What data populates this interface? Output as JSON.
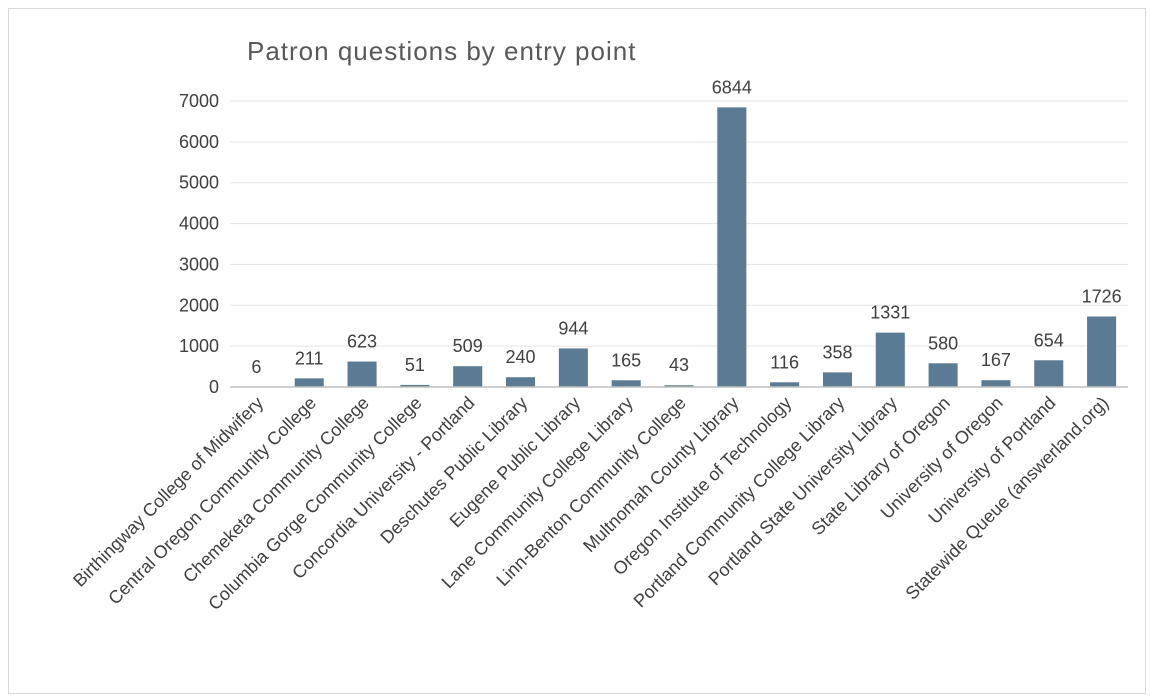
{
  "chart_data": {
    "type": "bar",
    "title": "Patron questions by entry point",
    "xlabel": "",
    "ylabel": "",
    "ylim": [
      0,
      7000
    ],
    "yticks": [
      0,
      1000,
      2000,
      3000,
      4000,
      5000,
      6000,
      7000
    ],
    "grid": true,
    "legend": "none",
    "bar_color": "#5b7a93",
    "categories": [
      "Birthingway College of Midwifery",
      "Central Oregon Community College",
      "Chemeketa Community College",
      "Columbia Gorge Community College",
      "Concordia University - Portland",
      "Deschutes Public Library",
      "Eugene Public Library",
      "Lane Community College Library",
      "Linn-Benton Community College",
      "Multnomah County Library",
      "Oregon Institute of Technology",
      "Portland Community College Library",
      "Portland State University Library",
      "State Library of Oregon",
      "University of Oregon",
      "University of Portland",
      "Statewide Queue (answerland.org)"
    ],
    "values": [
      6,
      211,
      623,
      51,
      509,
      240,
      944,
      165,
      43,
      6844,
      116,
      358,
      1331,
      580,
      167,
      654,
      1726
    ]
  }
}
